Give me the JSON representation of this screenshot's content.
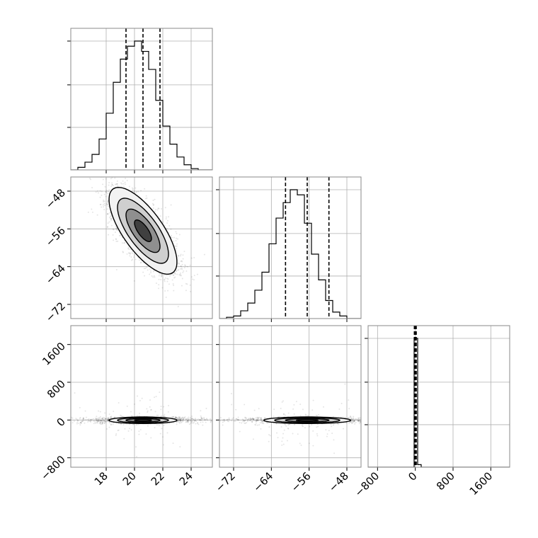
{
  "chart_data": {
    "type": "corner",
    "title": "",
    "grid": true,
    "parameters": [
      {
        "label": "",
        "range": [
          15.5,
          25.5
        ],
        "ticks": [
          18,
          20,
          22,
          24
        ],
        "tick_labels": [
          "18",
          "20",
          "22",
          "24"
        ]
      },
      {
        "label": "",
        "range": [
          -75,
          -45
        ],
        "ticks": [
          -72,
          -64,
          -56,
          -48
        ],
        "tick_labels": [
          "−72",
          "−64",
          "−56",
          "−48"
        ]
      },
      {
        "label": "",
        "range": [
          -1000,
          2000
        ],
        "ticks": [
          -800,
          0,
          800,
          1600
        ],
        "tick_labels": [
          "−800",
          "0",
          "800",
          "1600"
        ]
      }
    ],
    "marginals": [
      {
        "parameter": 0,
        "bins_start": 15.5,
        "bin_width": 0.5,
        "counts": [
          0,
          2,
          6,
          12,
          24,
          44,
          68,
          86,
          96,
          100,
          92,
          78,
          54,
          34,
          20,
          10,
          4,
          1,
          0,
          0
        ],
        "quantiles": [
          19.4,
          20.6,
          21.8
        ]
      },
      {
        "parameter": 1,
        "bins_start": -75,
        "bin_width": 1.5,
        "counts": [
          0,
          1,
          2,
          6,
          12,
          22,
          36,
          58,
          78,
          90,
          100,
          96,
          74,
          50,
          30,
          14,
          5,
          2,
          0,
          0
        ],
        "quantiles": [
          -61,
          -56.4,
          -51.8
        ]
      },
      {
        "parameter": 2,
        "bins_start": -1000,
        "bin_width": 75,
        "counts": [
          0,
          0,
          0,
          0,
          0,
          0,
          0,
          0,
          0,
          0,
          0,
          0,
          0,
          100,
          2,
          0,
          0,
          0,
          0,
          0,
          0,
          0,
          0,
          0,
          0,
          0,
          0,
          0,
          0,
          0,
          0,
          0,
          0,
          0,
          0,
          0,
          0,
          0,
          0,
          0
        ],
        "quantiles": [
          -20,
          0,
          20
        ]
      }
    ],
    "joints": [
      {
        "x_param": 0,
        "y_param": 1,
        "center": [
          20.6,
          -56.4
        ],
        "sigma": [
          1.2,
          4.6
        ],
        "rho": -0.72,
        "contour_levels_sigma": [
          0.5,
          1.0,
          1.5,
          2.0
        ]
      },
      {
        "x_param": 0,
        "y_param": 2,
        "center": [
          20.6,
          -5
        ],
        "sigma": [
          1.2,
          35
        ],
        "rho": 0,
        "contour_levels_sigma": [
          0.5,
          1.0,
          1.5,
          2.0
        ]
      },
      {
        "x_param": 1,
        "y_param": 2,
        "center": [
          -56.4,
          -5
        ],
        "sigma": [
          4.6,
          35
        ],
        "rho": 0,
        "contour_levels_sigma": [
          0.5,
          1.0,
          1.5,
          2.0
        ]
      }
    ]
  }
}
